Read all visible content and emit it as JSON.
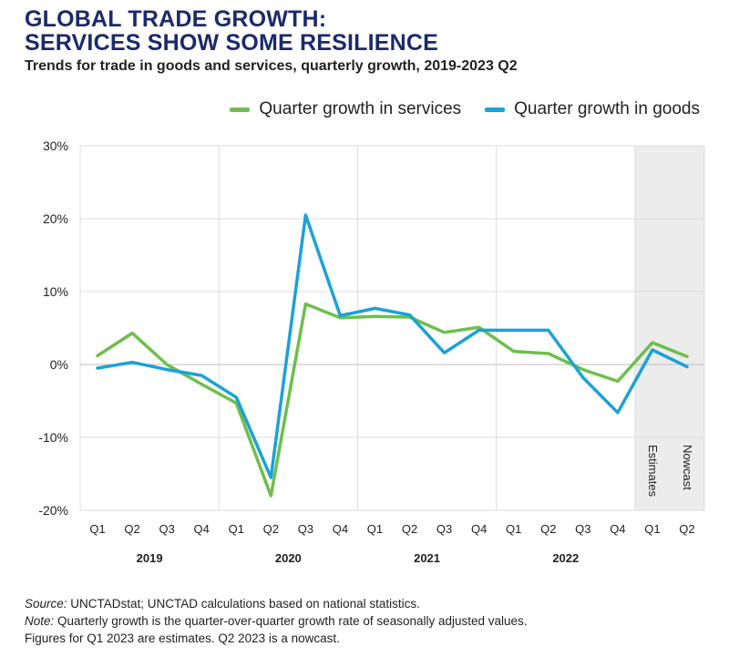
{
  "title_line1": "GLOBAL TRADE GROWTH:",
  "title_line2": "SERVICES SHOW SOME RESILIENCE",
  "subtitle": "Trends for trade in goods and services, quarterly growth, 2019-2023 Q2",
  "colors": {
    "services": "#6dbf4b",
    "goods": "#1ba1d8",
    "title": "#1b2a6b",
    "shade": "#ececec"
  },
  "footer": {
    "source_label": "Source:",
    "source_text": " UNCTADstat; UNCTAD calculations based on national statistics.",
    "note_label": "Note:",
    "note_text": " Quarterly growth is the quarter-over-quarter growth rate of seasonally adjusted values.",
    "line3": "Figures for Q1 2023 are estimates. Q2 2023 is a nowcast."
  },
  "chart_data": {
    "type": "line",
    "x": [
      "Q1",
      "Q2",
      "Q3",
      "Q4",
      "Q1",
      "Q2",
      "Q3",
      "Q4",
      "Q1",
      "Q2",
      "Q3",
      "Q4",
      "Q1",
      "Q2",
      "Q3",
      "Q4",
      "Q1",
      "Q2"
    ],
    "year_groups": [
      {
        "label": "2019",
        "start": 0,
        "end": 3
      },
      {
        "label": "2020",
        "start": 4,
        "end": 7
      },
      {
        "label": "2021",
        "start": 8,
        "end": 11
      },
      {
        "label": "2022",
        "start": 12,
        "end": 15
      }
    ],
    "ylim": [
      -20,
      30
    ],
    "yticks": [
      30,
      20,
      10,
      0,
      -10,
      -20
    ],
    "ytick_labels": [
      "30%",
      "20%",
      "10%",
      "0%",
      "-10%",
      "-20%"
    ],
    "grid": true,
    "legend_position": "top-right",
    "series": [
      {
        "name": "Quarter growth in services",
        "values": [
          1.2,
          4.3,
          0.0,
          -2.7,
          -5.3,
          -18.0,
          8.3,
          6.4,
          6.6,
          6.5,
          4.4,
          5.1,
          1.8,
          1.5,
          -0.7,
          -2.3,
          3.0,
          1.1
        ]
      },
      {
        "name": "Quarter growth in goods",
        "values": [
          -0.5,
          0.3,
          -0.7,
          -1.5,
          -4.5,
          -15.5,
          20.5,
          6.7,
          7.7,
          6.8,
          1.6,
          4.7,
          4.7,
          4.7,
          -1.8,
          -6.6,
          2.0,
          -0.3
        ]
      }
    ],
    "shaded_region": {
      "start": 16,
      "end": 17
    },
    "annotations": [
      "Estimates",
      "Nowcast"
    ]
  }
}
